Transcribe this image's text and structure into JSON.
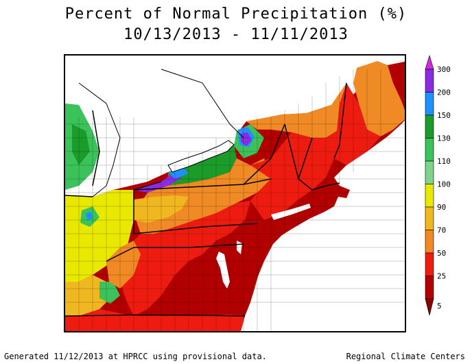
{
  "title": {
    "line1": "Percent of Normal Precipitation (%)",
    "line2": "10/13/2013 - 11/11/2013"
  },
  "legend": {
    "labels": [
      "300",
      "200",
      "150",
      "130",
      "110",
      "100",
      "90",
      "70",
      "50",
      "25",
      "5"
    ],
    "colors": [
      "#d12ae0",
      "#8a2be2",
      "#1e90ff",
      "#1a9b2a",
      "#3cc25a",
      "#7fd38a",
      "#e8e800",
      "#f0b820",
      "#f08a24",
      "#ee1c10",
      "#b20000"
    ]
  },
  "footer": {
    "left": "Generated 11/12/2013 at HPRCC using provisional data.",
    "right": "Regional Climate Centers"
  },
  "map": {
    "region": "Northeast United States",
    "colors": {
      "water": "#ffffff",
      "very_low": "#b20000",
      "low": "#ee1c10",
      "below": "#f08a24",
      "near_low": "#f0b820",
      "near": "#e8e800",
      "normal": "#7fd38a",
      "above": "#1a9b2a",
      "high": "#1e90ff",
      "very_high": "#8a2be2"
    }
  }
}
